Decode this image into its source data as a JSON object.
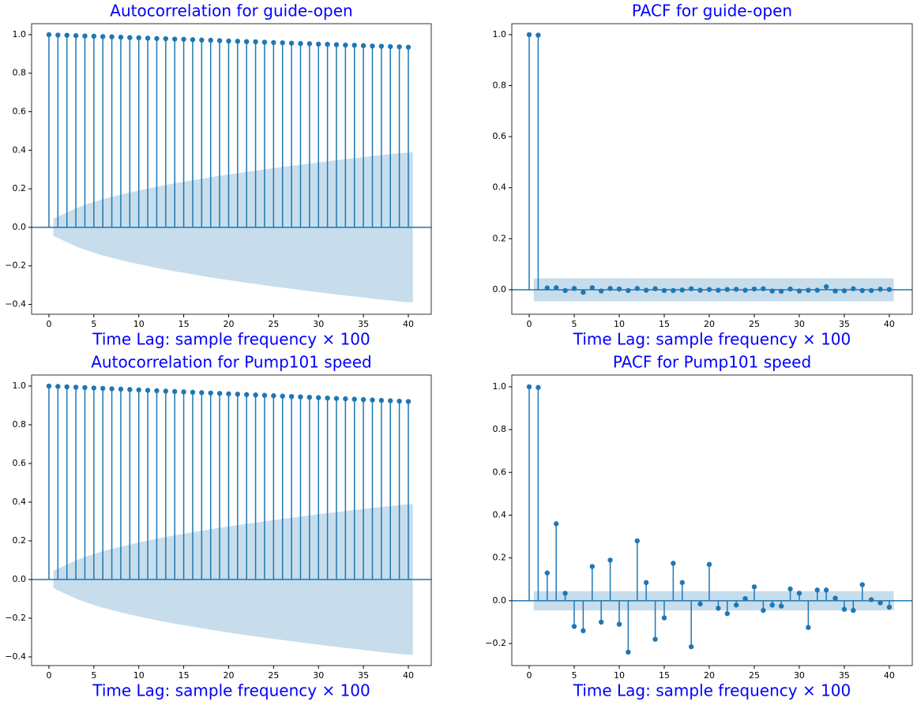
{
  "chart_data": [
    {
      "type": "stem",
      "title": "Autocorrelation for guide-open",
      "x_label": "Time Lag: sample frequency × 100",
      "color": "#1f77b4",
      "band_color": "#1f77b4",
      "x": [
        0,
        1,
        2,
        3,
        4,
        5,
        6,
        7,
        8,
        9,
        10,
        11,
        12,
        13,
        14,
        15,
        16,
        17,
        18,
        19,
        20,
        21,
        22,
        23,
        24,
        25,
        26,
        27,
        28,
        29,
        30,
        31,
        32,
        33,
        34,
        35,
        36,
        37,
        38,
        39,
        40
      ],
      "values": [
        1.0,
        0.998,
        0.997,
        0.995,
        0.993,
        0.992,
        0.99,
        0.989,
        0.987,
        0.985,
        0.984,
        0.982,
        0.98,
        0.979,
        0.977,
        0.976,
        0.974,
        0.972,
        0.971,
        0.969,
        0.967,
        0.966,
        0.964,
        0.963,
        0.961,
        0.959,
        0.958,
        0.956,
        0.954,
        0.953,
        0.951,
        0.95,
        0.948,
        0.946,
        0.945,
        0.943,
        0.941,
        0.94,
        0.938,
        0.937,
        0.935
      ],
      "confint": [
        null,
        0.045,
        0.077,
        0.099,
        0.116,
        0.132,
        0.146,
        0.158,
        0.17,
        0.181,
        0.191,
        0.201,
        0.211,
        0.22,
        0.228,
        0.236,
        0.244,
        0.252,
        0.26,
        0.267,
        0.274,
        0.281,
        0.288,
        0.294,
        0.301,
        0.307,
        0.313,
        0.319,
        0.325,
        0.331,
        0.337,
        0.343,
        0.348,
        0.354,
        0.359,
        0.364,
        0.37,
        0.375,
        0.38,
        0.385,
        0.39
      ],
      "xlim": [
        -1.93,
        42.55
      ],
      "xticks": [
        0,
        5,
        10,
        15,
        20,
        25,
        30,
        35,
        40
      ],
      "ylim": [
        -0.451,
        1.057
      ],
      "yticks": [
        {
          "value": -0.4,
          "label": "−0.4"
        },
        {
          "value": -0.2,
          "label": "−0.2"
        },
        {
          "value": 0,
          "label": "0.0"
        },
        0.2,
        0.4,
        0.6,
        0.8,
        {
          "value": 1,
          "label": "1.0"
        }
      ]
    },
    {
      "type": "stem",
      "title": "PACF for guide-open",
      "x_label": "Time Lag: sample frequency × 100",
      "color": "#1f77b4",
      "band_color": "#1f77b4",
      "x": [
        0,
        1,
        2,
        3,
        4,
        5,
        6,
        7,
        8,
        9,
        10,
        11,
        12,
        13,
        14,
        15,
        16,
        17,
        18,
        19,
        20,
        21,
        22,
        23,
        24,
        25,
        26,
        27,
        28,
        29,
        30,
        31,
        32,
        33,
        34,
        35,
        36,
        37,
        38,
        39,
        40
      ],
      "values": [
        1.0,
        0.998,
        0.007,
        0.008,
        -0.003,
        0.005,
        -0.01,
        0.008,
        -0.005,
        0.005,
        0.003,
        -0.003,
        0.005,
        -0.002,
        0.004,
        -0.003,
        -0.003,
        -0.001,
        0.004,
        -0.002,
        0.001,
        -0.002,
        0.001,
        0.002,
        -0.002,
        0.003,
        0.004,
        -0.005,
        -0.006,
        0.003,
        -0.005,
        -0.002,
        -0.002,
        0.012,
        -0.005,
        -0.004,
        0.004,
        -0.003,
        -0.003,
        0.002,
        0.001
      ],
      "confint": [
        null,
        0.045,
        0.045,
        0.045,
        0.045,
        0.045,
        0.045,
        0.045,
        0.045,
        0.045,
        0.045,
        0.045,
        0.045,
        0.045,
        0.045,
        0.045,
        0.045,
        0.045,
        0.045,
        0.045,
        0.045,
        0.045,
        0.045,
        0.045,
        0.045,
        0.045,
        0.045,
        0.045,
        0.045,
        0.045,
        0.045,
        0.045,
        0.045,
        0.045,
        0.045,
        0.045,
        0.045,
        0.045,
        0.045,
        0.045,
        0.045
      ],
      "xlim": [
        -1.93,
        42.55
      ],
      "xticks": [
        0,
        5,
        10,
        15,
        20,
        25,
        30,
        35,
        40
      ],
      "ylim": [
        -0.096,
        1.043
      ],
      "yticks": [
        {
          "value": 0,
          "label": "0.0"
        },
        0.2,
        0.4,
        0.6,
        0.8,
        {
          "value": 1,
          "label": "1.0"
        }
      ]
    },
    {
      "type": "stem",
      "title": "Autocorrelation for Pump101 speed",
      "x_label": "Time Lag: sample frequency × 100",
      "color": "#1f77b4",
      "band_color": "#1f77b4",
      "x": [
        0,
        1,
        2,
        3,
        4,
        5,
        6,
        7,
        8,
        9,
        10,
        11,
        12,
        13,
        14,
        15,
        16,
        17,
        18,
        19,
        20,
        21,
        22,
        23,
        24,
        25,
        26,
        27,
        28,
        29,
        30,
        31,
        32,
        33,
        34,
        35,
        36,
        37,
        38,
        39,
        40
      ],
      "values": [
        1.0,
        0.998,
        0.996,
        0.994,
        0.992,
        0.99,
        0.988,
        0.986,
        0.984,
        0.982,
        0.98,
        0.978,
        0.976,
        0.974,
        0.972,
        0.97,
        0.968,
        0.966,
        0.964,
        0.962,
        0.96,
        0.958,
        0.956,
        0.954,
        0.952,
        0.95,
        0.948,
        0.946,
        0.944,
        0.942,
        0.94,
        0.938,
        0.936,
        0.934,
        0.932,
        0.93,
        0.928,
        0.926,
        0.924,
        0.922,
        0.92
      ],
      "confint": [
        null,
        0.045,
        0.077,
        0.099,
        0.116,
        0.132,
        0.146,
        0.158,
        0.17,
        0.181,
        0.191,
        0.201,
        0.211,
        0.22,
        0.228,
        0.236,
        0.244,
        0.252,
        0.26,
        0.267,
        0.274,
        0.281,
        0.288,
        0.294,
        0.301,
        0.307,
        0.313,
        0.319,
        0.325,
        0.331,
        0.337,
        0.343,
        0.348,
        0.354,
        0.359,
        0.364,
        0.37,
        0.375,
        0.38,
        0.385,
        0.39
      ],
      "xlim": [
        -1.93,
        42.55
      ],
      "xticks": [
        0,
        5,
        10,
        15,
        20,
        25,
        30,
        35,
        40
      ],
      "ylim": [
        -0.445,
        1.057
      ],
      "yticks": [
        {
          "value": -0.4,
          "label": "−0.4"
        },
        {
          "value": -0.2,
          "label": "−0.2"
        },
        {
          "value": 0,
          "label": "0.0"
        },
        0.2,
        0.4,
        0.6,
        0.8,
        {
          "value": 1,
          "label": "1.0"
        }
      ]
    },
    {
      "type": "stem",
      "title": "PACF for Pump101 speed",
      "x_label": "Time Lag: sample frequency × 100",
      "color": "#1f77b4",
      "band_color": "#1f77b4",
      "x": [
        0,
        1,
        2,
        3,
        4,
        5,
        6,
        7,
        8,
        9,
        10,
        11,
        12,
        13,
        14,
        15,
        16,
        17,
        18,
        19,
        20,
        21,
        22,
        23,
        24,
        25,
        26,
        27,
        28,
        29,
        30,
        31,
        32,
        33,
        34,
        35,
        36,
        37,
        38,
        39,
        40
      ],
      "values": [
        1.0,
        0.997,
        0.13,
        0.36,
        0.035,
        -0.12,
        -0.14,
        0.16,
        -0.1,
        0.19,
        -0.11,
        -0.24,
        0.28,
        0.085,
        -0.18,
        -0.08,
        0.175,
        0.085,
        -0.215,
        -0.015,
        0.17,
        -0.035,
        -0.06,
        -0.02,
        0.01,
        0.065,
        -0.045,
        -0.02,
        -0.025,
        0.055,
        0.035,
        -0.125,
        0.05,
        0.05,
        0.012,
        -0.04,
        -0.045,
        0.075,
        0.005,
        -0.01,
        -0.03
      ],
      "confint": [
        null,
        0.045,
        0.045,
        0.045,
        0.045,
        0.045,
        0.045,
        0.045,
        0.045,
        0.045,
        0.045,
        0.045,
        0.045,
        0.045,
        0.045,
        0.045,
        0.045,
        0.045,
        0.045,
        0.045,
        0.045,
        0.045,
        0.045,
        0.045,
        0.045,
        0.045,
        0.045,
        0.045,
        0.045,
        0.045,
        0.045,
        0.045,
        0.045,
        0.045,
        0.045,
        0.045,
        0.045,
        0.045,
        0.045,
        0.045,
        0.045
      ],
      "xlim": [
        -1.93,
        42.55
      ],
      "xticks": [
        0,
        5,
        10,
        15,
        20,
        25,
        30,
        35,
        40
      ],
      "ylim": [
        -0.303,
        1.055
      ],
      "yticks": [
        {
          "value": -0.2,
          "label": "−0.2"
        },
        {
          "value": 0,
          "label": "0.0"
        },
        0.2,
        0.4,
        0.6,
        0.8,
        {
          "value": 1,
          "label": "1.0"
        }
      ]
    }
  ]
}
